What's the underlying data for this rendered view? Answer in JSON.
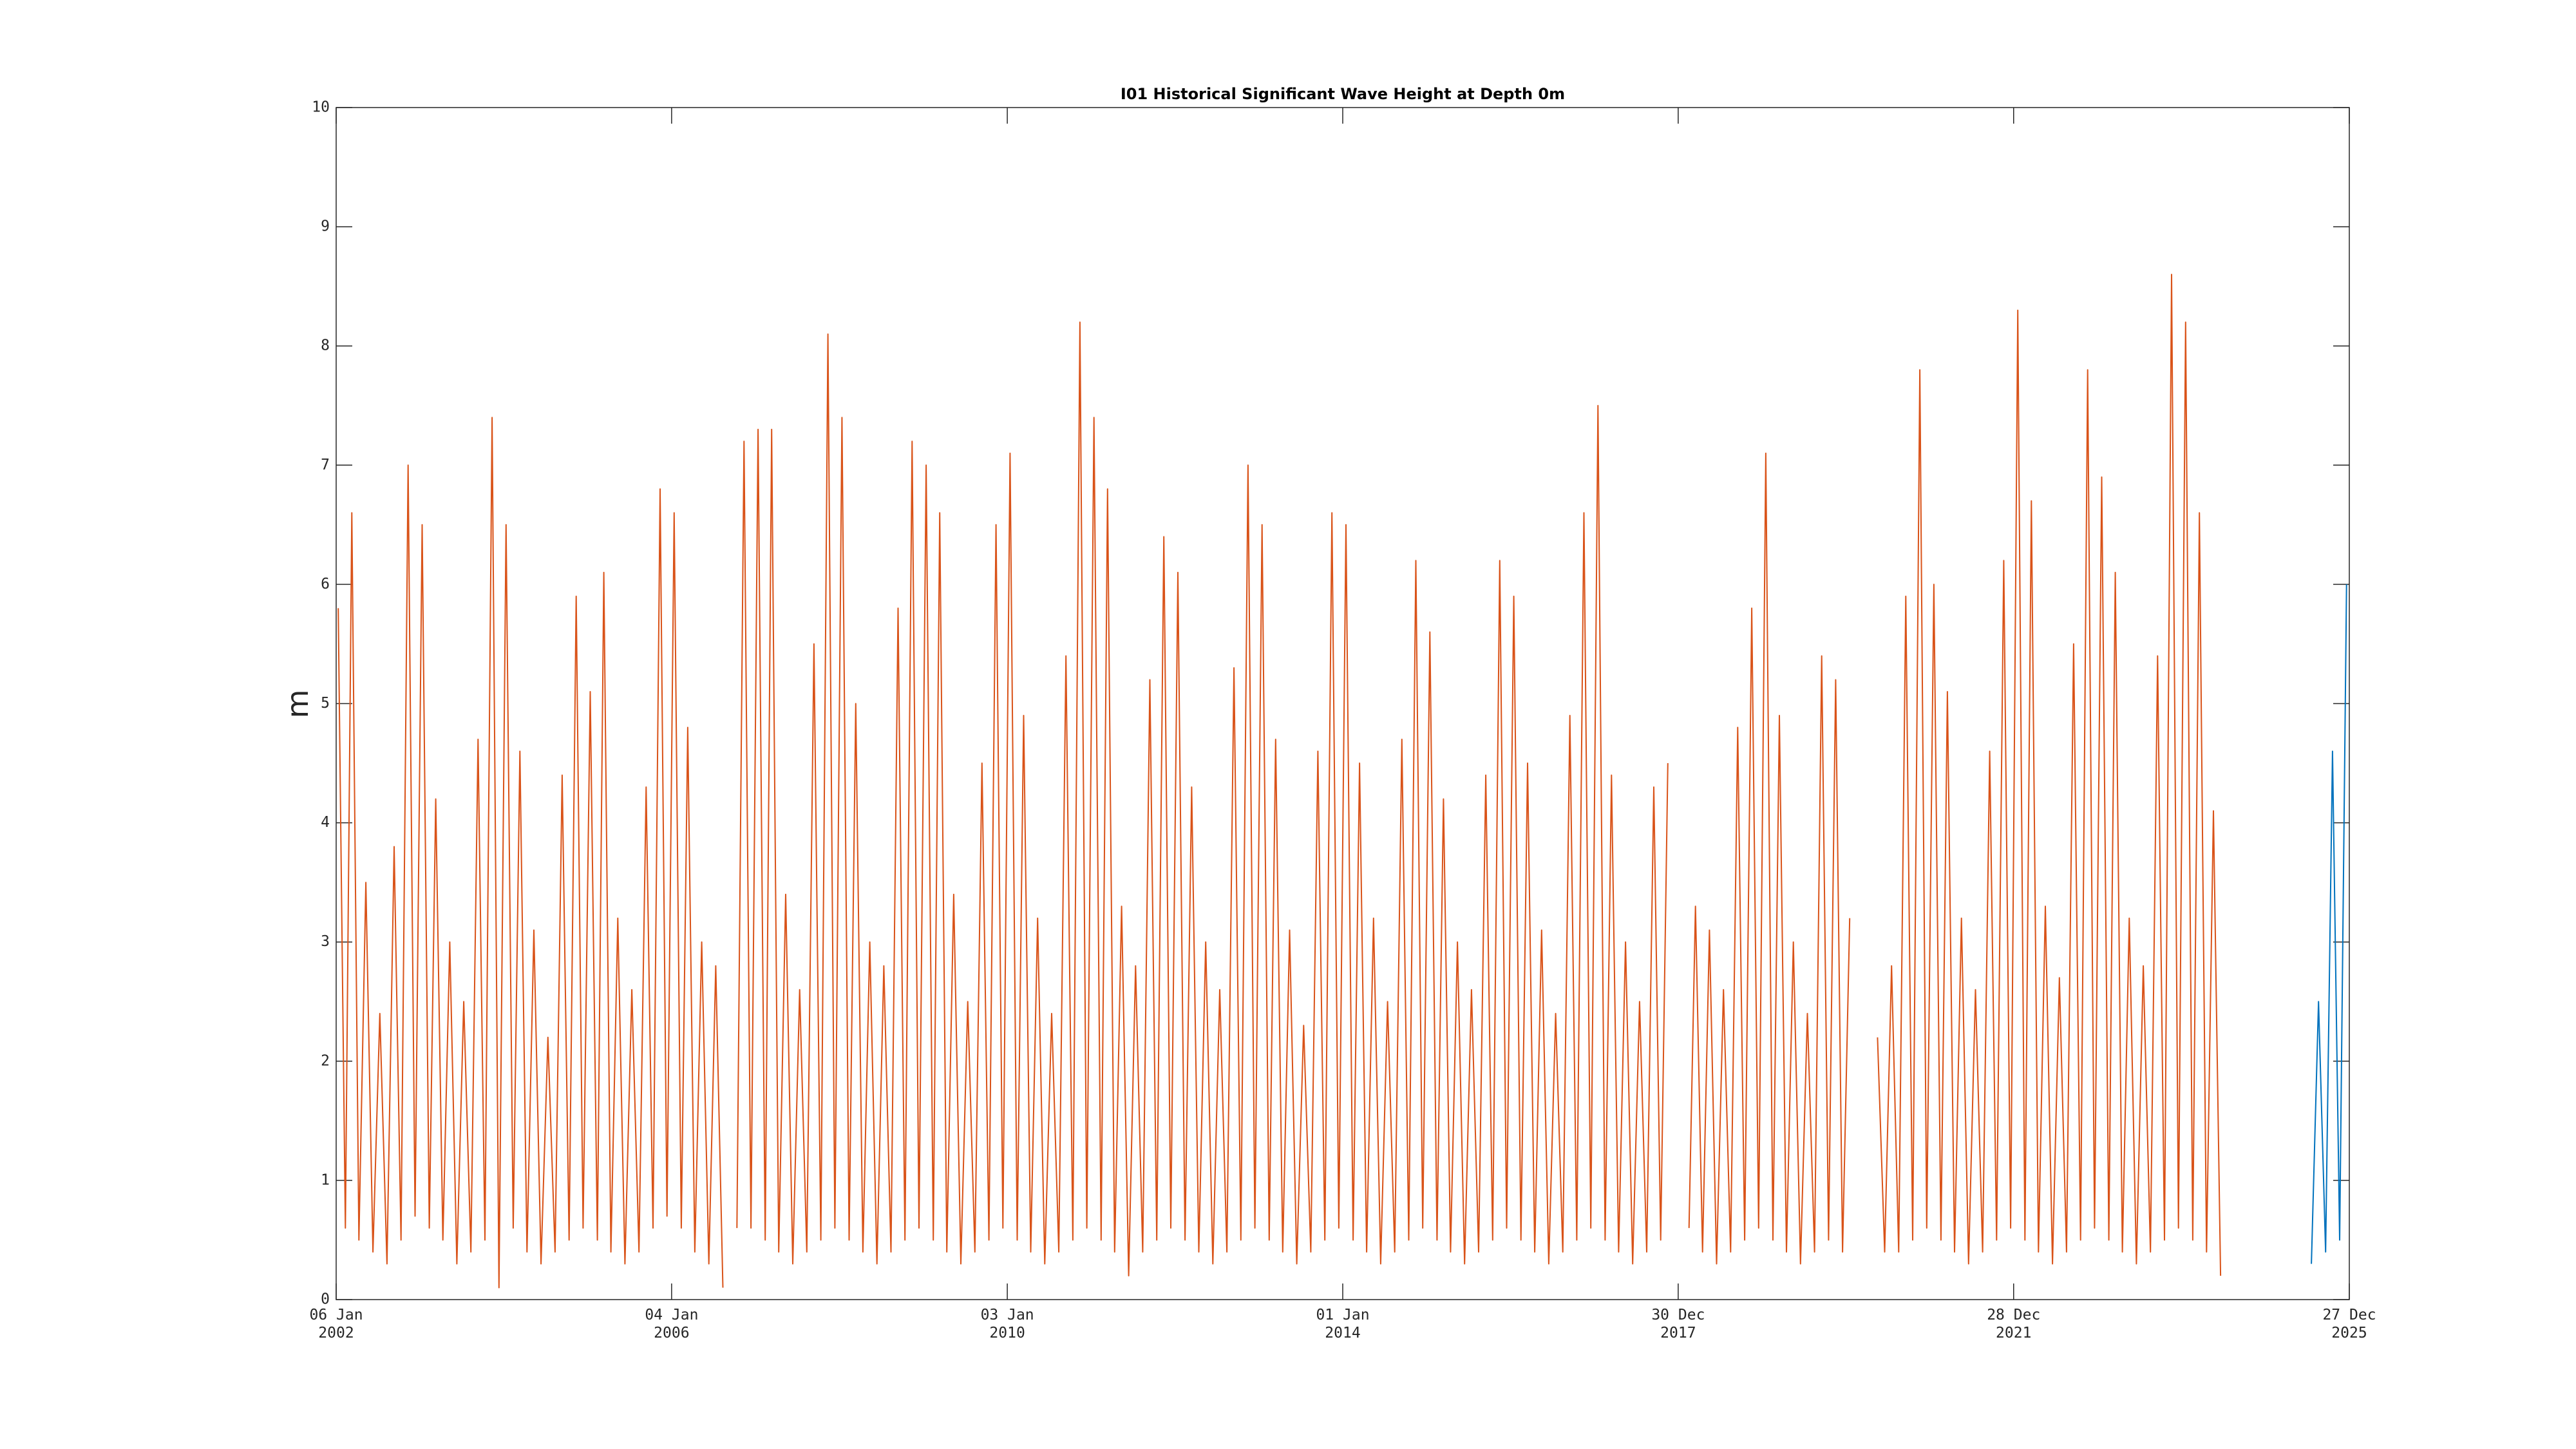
{
  "chart_data": {
    "type": "line",
    "title": "I01 Historical Significant Wave Height at Depth 0m",
    "y_label": "m",
    "xlim": [
      "2002-01-06",
      "2025-12-27"
    ],
    "xticks": [
      {
        "value": "2002-01-06",
        "label": "06 Jan\n2002"
      },
      {
        "value": "2006-01-04",
        "label": "04 Jan\n2006"
      },
      {
        "value": "2010-01-03",
        "label": "03 Jan\n2010"
      },
      {
        "value": "2014-01-01",
        "label": "01 Jan\n2014"
      },
      {
        "value": "2017-12-30",
        "label": "30 Dec\n2017"
      },
      {
        "value": "2021-12-28",
        "label": "28 Dec\n2021"
      },
      {
        "value": "2025-12-27",
        "label": "27 Dec\n2025"
      }
    ],
    "ylim": [
      0,
      10
    ],
    "yticks": [
      0,
      1,
      2,
      3,
      4,
      5,
      6,
      7,
      8,
      9,
      10
    ],
    "grid": false,
    "x": [
      "2002-01-15",
      "2002-02-15",
      "2002-03-15",
      "2002-04-15",
      "2002-05-15",
      "2002-06-15",
      "2002-07-15",
      "2002-08-15",
      "2002-09-15",
      "2002-10-15",
      "2002-11-15",
      "2002-12-15",
      "2003-01-15",
      "2003-02-15",
      "2003-03-15",
      "2003-04-15",
      "2003-05-15",
      "2003-06-15",
      "2003-07-15",
      "2003-08-15",
      "2003-09-15",
      "2003-10-15",
      "2003-11-15",
      "2003-12-15",
      "2004-01-15",
      "2004-02-15",
      "2004-03-15",
      "2004-04-15",
      "2004-05-15",
      "2004-06-15",
      "2004-07-15",
      "2004-08-15",
      "2004-09-15",
      "2004-10-15",
      "2004-11-15",
      "2004-12-15",
      "2005-01-15",
      "2005-02-15",
      "2005-03-15",
      "2005-04-15",
      "2005-05-15",
      "2005-06-15",
      "2005-07-15",
      "2005-08-15",
      "2005-09-15",
      "2005-10-15",
      "2005-11-15",
      "2005-12-15",
      "2006-01-15",
      "2006-02-15",
      "2006-03-15",
      "2006-04-15",
      "2006-05-15",
      "2006-06-15",
      "2006-07-15",
      "2006-08-15",
      "2006-09-15",
      "2006-10-15",
      "2006-11-15",
      "2006-12-15",
      "2007-01-15",
      "2007-02-15",
      "2007-03-15",
      "2007-04-15",
      "2007-05-15",
      "2007-06-15",
      "2007-07-15",
      "2007-08-15",
      "2007-09-15",
      "2007-10-15",
      "2007-11-15",
      "2007-12-15",
      "2008-01-15",
      "2008-02-15",
      "2008-03-15",
      "2008-04-15",
      "2008-05-15",
      "2008-06-15",
      "2008-07-15",
      "2008-08-15",
      "2008-09-15",
      "2008-10-15",
      "2008-11-15",
      "2008-12-15",
      "2009-01-15",
      "2009-02-15",
      "2009-03-15",
      "2009-04-15",
      "2009-05-15",
      "2009-06-15",
      "2009-07-15",
      "2009-08-15",
      "2009-09-15",
      "2009-10-15",
      "2009-11-15",
      "2009-12-15",
      "2010-01-15",
      "2010-02-15",
      "2010-03-15",
      "2010-04-15",
      "2010-05-15",
      "2010-06-15",
      "2010-07-15",
      "2010-08-15",
      "2010-09-15",
      "2010-10-15",
      "2010-11-15",
      "2010-12-15",
      "2011-01-15",
      "2011-02-15",
      "2011-03-15",
      "2011-04-15",
      "2011-05-15",
      "2011-06-15",
      "2011-07-15",
      "2011-08-15",
      "2011-09-15",
      "2011-10-15",
      "2011-11-15",
      "2011-12-15",
      "2012-01-15",
      "2012-02-15",
      "2012-03-15",
      "2012-04-15",
      "2012-05-15",
      "2012-06-15",
      "2012-07-15",
      "2012-08-15",
      "2012-09-15",
      "2012-10-15",
      "2012-11-15",
      "2012-12-15",
      "2013-01-15",
      "2013-02-15",
      "2013-03-15",
      "2013-04-15",
      "2013-05-15",
      "2013-06-15",
      "2013-07-15",
      "2013-08-15",
      "2013-09-15",
      "2013-10-15",
      "2013-11-15",
      "2013-12-15",
      "2014-01-15",
      "2014-02-15",
      "2014-03-15",
      "2014-04-15",
      "2014-05-15",
      "2014-06-15",
      "2014-07-15",
      "2014-08-15",
      "2014-09-15",
      "2014-10-15",
      "2014-11-15",
      "2014-12-15",
      "2015-01-15",
      "2015-02-15",
      "2015-03-15",
      "2015-04-15",
      "2015-05-15",
      "2015-06-15",
      "2015-07-15",
      "2015-08-15",
      "2015-09-15",
      "2015-10-15",
      "2015-11-15",
      "2015-12-15",
      "2016-01-15",
      "2016-02-15",
      "2016-03-15",
      "2016-04-15",
      "2016-05-15",
      "2016-06-15",
      "2016-07-15",
      "2016-08-15",
      "2016-09-15",
      "2016-10-15",
      "2016-11-15",
      "2016-12-15",
      "2017-01-15",
      "2017-02-15",
      "2017-03-15",
      "2017-04-15",
      "2017-05-15",
      "2017-06-15",
      "2017-07-15",
      "2017-08-15",
      "2017-09-15",
      "2017-10-15",
      "2017-11-15",
      "2017-12-15",
      "2018-01-15",
      "2018-02-15",
      "2018-03-15",
      "2018-04-15",
      "2018-05-15",
      "2018-06-15",
      "2018-07-15",
      "2018-08-15",
      "2018-09-15",
      "2018-10-15",
      "2018-11-15",
      "2018-12-15",
      "2019-01-15",
      "2019-02-15",
      "2019-03-15",
      "2019-04-15",
      "2019-05-15",
      "2019-06-15",
      "2019-07-15",
      "2019-08-15",
      "2019-09-15",
      "2019-10-15",
      "2019-11-15",
      "2019-12-15",
      "2020-01-15",
      "2020-02-15",
      "2020-03-15",
      "2020-04-15",
      "2020-05-15",
      "2020-06-15",
      "2020-07-15",
      "2020-08-15",
      "2020-09-15",
      "2020-10-15",
      "2020-11-15",
      "2020-12-15",
      "2021-01-15",
      "2021-02-15",
      "2021-03-15",
      "2021-04-15",
      "2021-05-15",
      "2021-06-15",
      "2021-07-15",
      "2021-08-15",
      "2021-09-15",
      "2021-10-15",
      "2021-11-15",
      "2021-12-15",
      "2022-01-15",
      "2022-02-15",
      "2022-03-15",
      "2022-04-15",
      "2022-05-15",
      "2022-06-15",
      "2022-07-15",
      "2022-08-15",
      "2022-09-15",
      "2022-10-15",
      "2022-11-15",
      "2022-12-15",
      "2023-01-15",
      "2023-02-15",
      "2023-03-15",
      "2023-04-15",
      "2023-05-15",
      "2023-06-15",
      "2023-07-15",
      "2023-08-15",
      "2023-09-15",
      "2023-10-15",
      "2023-11-15",
      "2023-12-15",
      "2024-01-15",
      "2024-02-15",
      "2024-03-15",
      "2024-04-15",
      "2024-05-15",
      "2024-06-15",
      "2024-07-15",
      "2024-08-15",
      "2024-09-15",
      "2024-10-15",
      "2024-11-15",
      "2024-12-15",
      "2025-01-15",
      "2025-02-15",
      "2025-03-15",
      "2025-04-15",
      "2025-05-15",
      "2025-06-15",
      "2025-07-15",
      "2025-08-15",
      "2025-09-15",
      "2025-10-15",
      "2025-11-15",
      "2025-12-15"
    ],
    "series": [
      {
        "color": "#d95319",
        "values": [
          5.8,
          0.6,
          6.6,
          0.5,
          3.5,
          0.4,
          2.4,
          0.3,
          3.8,
          0.5,
          7.0,
          0.7,
          6.5,
          0.6,
          4.2,
          0.5,
          3.0,
          0.3,
          2.5,
          0.4,
          4.7,
          0.5,
          7.4,
          0.1,
          6.5,
          0.6,
          4.6,
          0.4,
          3.1,
          0.3,
          2.2,
          0.4,
          4.4,
          0.5,
          5.9,
          0.6,
          5.1,
          0.5,
          6.1,
          0.4,
          3.2,
          0.3,
          2.6,
          0.4,
          4.3,
          0.6,
          6.8,
          0.7,
          6.6,
          0.6,
          4.8,
          0.4,
          3.0,
          0.3,
          2.8,
          0.1,
          null,
          0.6,
          7.2,
          0.6,
          7.3,
          0.5,
          7.3,
          0.4,
          3.4,
          0.3,
          2.6,
          0.4,
          5.5,
          0.5,
          8.1,
          0.6,
          7.4,
          0.5,
          5.0,
          0.4,
          3.0,
          0.3,
          2.8,
          0.4,
          5.8,
          0.5,
          7.2,
          0.6,
          7.0,
          0.5,
          6.6,
          0.4,
          3.4,
          0.3,
          2.5,
          0.4,
          4.5,
          0.5,
          6.5,
          0.6,
          7.1,
          0.5,
          4.9,
          0.4,
          3.2,
          0.3,
          2.4,
          0.4,
          5.4,
          0.5,
          8.2,
          0.6,
          7.4,
          0.5,
          6.8,
          0.4,
          3.3,
          0.2,
          2.8,
          0.4,
          5.2,
          0.5,
          6.4,
          0.6,
          6.1,
          0.5,
          4.3,
          0.4,
          3.0,
          0.3,
          2.6,
          0.4,
          5.3,
          0.5,
          7.0,
          0.6,
          6.5,
          0.5,
          4.7,
          0.4,
          3.1,
          0.3,
          2.3,
          0.4,
          4.6,
          0.5,
          6.6,
          0.6,
          6.5,
          0.5,
          4.5,
          0.4,
          3.2,
          0.3,
          2.5,
          0.4,
          4.7,
          0.5,
          6.2,
          0.6,
          5.6,
          0.5,
          4.2,
          0.4,
          3.0,
          0.3,
          2.6,
          0.4,
          4.4,
          0.5,
          6.2,
          0.6,
          5.9,
          0.5,
          4.5,
          0.4,
          3.1,
          0.3,
          2.4,
          0.4,
          4.9,
          0.5,
          6.6,
          0.6,
          7.5,
          0.5,
          4.4,
          0.4,
          3.0,
          0.3,
          2.5,
          0.4,
          4.3,
          0.5,
          4.5,
          null,
          null,
          0.6,
          3.3,
          0.4,
          3.1,
          0.3,
          2.6,
          0.4,
          4.8,
          0.5,
          5.8,
          0.6,
          7.1,
          0.5,
          4.9,
          0.4,
          3.0,
          0.3,
          2.4,
          0.4,
          5.4,
          0.5,
          5.2,
          0.4,
          3.2,
          null,
          null,
          null,
          2.2,
          0.4,
          2.8,
          0.4,
          5.9,
          0.5,
          7.8,
          0.6,
          6.0,
          0.5,
          5.1,
          0.4,
          3.2,
          0.3,
          2.6,
          0.4,
          4.6,
          0.5,
          6.2,
          0.6,
          8.3,
          0.5,
          6.7,
          0.4,
          3.3,
          0.3,
          2.7,
          0.4,
          5.5,
          0.5,
          7.8,
          0.6,
          6.9,
          0.5,
          6.1,
          0.4,
          3.2,
          0.3,
          2.8,
          0.4,
          5.4,
          0.5,
          8.6,
          0.6,
          8.2,
          0.5,
          6.6,
          0.4,
          4.1,
          0.2,
          null,
          null,
          null,
          null,
          null,
          null,
          null,
          null,
          null,
          null,
          null,
          null,
          null,
          null,
          null,
          null,
          null,
          null
        ]
      },
      {
        "color": "#0072bd",
        "values": [
          null,
          null,
          null,
          null,
          null,
          null,
          null,
          null,
          null,
          null,
          null,
          null,
          null,
          null,
          null,
          null,
          null,
          null,
          null,
          null,
          null,
          null,
          null,
          null,
          null,
          null,
          null,
          null,
          null,
          null,
          null,
          null,
          null,
          null,
          null,
          null,
          null,
          null,
          null,
          null,
          null,
          null,
          null,
          null,
          null,
          null,
          null,
          null,
          null,
          null,
          null,
          null,
          null,
          null,
          null,
          null,
          null,
          null,
          null,
          null,
          null,
          null,
          null,
          null,
          null,
          null,
          null,
          null,
          null,
          null,
          null,
          null,
          null,
          null,
          null,
          null,
          null,
          null,
          null,
          null,
          null,
          null,
          null,
          null,
          null,
          null,
          null,
          null,
          null,
          null,
          null,
          null,
          null,
          null,
          null,
          null,
          null,
          null,
          null,
          null,
          null,
          null,
          null,
          null,
          null,
          null,
          null,
          null,
          null,
          null,
          null,
          null,
          null,
          null,
          null,
          null,
          null,
          null,
          null,
          null,
          null,
          null,
          null,
          null,
          null,
          null,
          null,
          null,
          null,
          null,
          null,
          null,
          null,
          null,
          null,
          null,
          null,
          null,
          null,
          null,
          null,
          null,
          null,
          null,
          null,
          null,
          null,
          null,
          null,
          null,
          null,
          null,
          null,
          null,
          null,
          null,
          null,
          null,
          null,
          null,
          null,
          null,
          null,
          null,
          null,
          null,
          null,
          null,
          null,
          null,
          null,
          null,
          null,
          null,
          null,
          null,
          null,
          null,
          null,
          null,
          null,
          null,
          null,
          null,
          null,
          null,
          null,
          null,
          null,
          null,
          null,
          null,
          null,
          null,
          null,
          null,
          null,
          null,
          null,
          null,
          null,
          null,
          null,
          null,
          null,
          null,
          null,
          null,
          null,
          null,
          null,
          null,
          null,
          null,
          null,
          null,
          null,
          null,
          null,
          null,
          null,
          null,
          null,
          null,
          null,
          null,
          null,
          null,
          null,
          null,
          null,
          null,
          null,
          null,
          null,
          null,
          null,
          null,
          null,
          null,
          null,
          null,
          null,
          null,
          null,
          null,
          null,
          null,
          null,
          null,
          null,
          null,
          null,
          null,
          null,
          null,
          null,
          null,
          null,
          null,
          null,
          null,
          null,
          null,
          null,
          null,
          null,
          null,
          null,
          null,
          null,
          null,
          null,
          null,
          null,
          null,
          null,
          null,
          null,
          null,
          null,
          null,
          0.3,
          2.5,
          0.4,
          4.6,
          0.5,
          6.0
        ]
      }
    ]
  }
}
